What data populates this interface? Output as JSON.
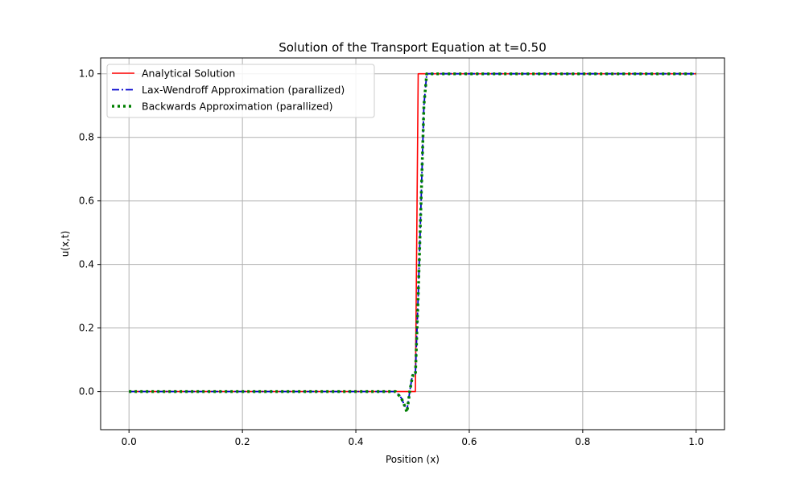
{
  "chart_data": {
    "type": "line",
    "title": "Solution of the Transport Equation at t=0.50",
    "xlabel": "Position (x)",
    "ylabel": "u(x,t)",
    "xlim": [
      -0.05,
      1.05
    ],
    "ylim": [
      -0.12,
      1.05
    ],
    "xticks": [
      0.0,
      0.2,
      0.4,
      0.6,
      0.8,
      1.0
    ],
    "xtick_labels": [
      "0.0",
      "0.2",
      "0.4",
      "0.6",
      "0.8",
      "1.0"
    ],
    "yticks": [
      0.0,
      0.2,
      0.4,
      0.6,
      0.8,
      1.0
    ],
    "ytick_labels": [
      "0.0",
      "0.2",
      "0.4",
      "0.6",
      "0.8",
      "1.0"
    ],
    "grid": true,
    "legend_position": "upper-left",
    "series": [
      {
        "name": "Analytical Solution",
        "color": "#ff0000",
        "style": "solid",
        "x": [
          0.0,
          0.5,
          0.505,
          0.51,
          0.515,
          1.0
        ],
        "y": [
          0.0,
          0.0,
          0.0,
          1.0,
          1.0,
          1.0
        ]
      },
      {
        "name": "Lax-Wendroff Approximation (parallized)",
        "color": "#0000cc",
        "style": "dashdot",
        "x": [
          0.0,
          0.455,
          0.465,
          0.47,
          0.475,
          0.48,
          0.485,
          0.49,
          0.495,
          0.5,
          0.505,
          0.51,
          0.515,
          0.52,
          0.525,
          0.53,
          1.0
        ],
        "y": [
          0.0,
          0.0,
          0.0,
          0.0,
          -0.01,
          -0.02,
          -0.04,
          -0.06,
          0.0,
          0.055,
          0.055,
          0.3,
          0.6,
          0.9,
          1.0,
          1.0,
          1.0
        ]
      },
      {
        "name": "Backwards Approximation (parallized)",
        "color": "#008000",
        "style": "dotted",
        "x": [
          0.0,
          0.455,
          0.465,
          0.47,
          0.475,
          0.48,
          0.485,
          0.49,
          0.495,
          0.5,
          0.505,
          0.51,
          0.515,
          0.52,
          0.525,
          0.53,
          1.0
        ],
        "y": [
          0.0,
          0.0,
          0.0,
          0.0,
          -0.01,
          -0.02,
          -0.04,
          -0.065,
          0.0,
          0.05,
          0.05,
          0.3,
          0.6,
          0.9,
          1.0,
          1.0,
          1.0
        ]
      }
    ]
  }
}
